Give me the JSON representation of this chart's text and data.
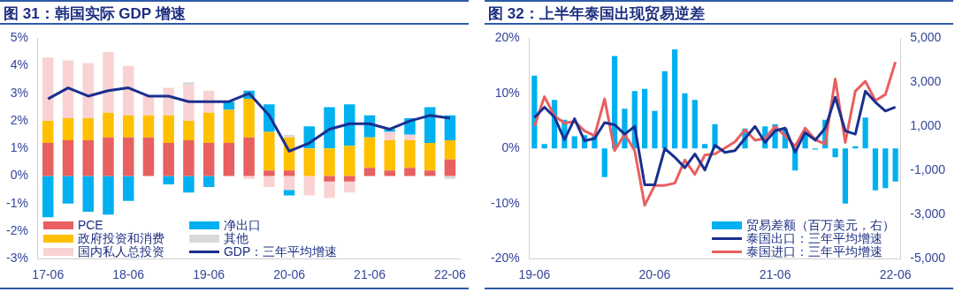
{
  "chart_data": [
    {
      "type": "bar",
      "title": "图 31：韩国实际 GDP 增速",
      "stacked": true,
      "legend": "bottom left",
      "grid": false,
      "categories": [
        "17-06",
        null,
        null,
        null,
        "18-06",
        null,
        null,
        null,
        "19-06",
        null,
        null,
        null,
        "20-06",
        null,
        null,
        null,
        "21-06",
        null,
        null,
        null,
        "22-06"
      ],
      "ylim": [
        -3,
        5
      ],
      "yticks": [
        {
          "value": -3,
          "label": "-3%"
        },
        {
          "value": -2,
          "label": "-2%"
        },
        {
          "value": -1,
          "label": "-1%"
        },
        {
          "value": 0,
          "label": "0%"
        },
        {
          "value": 1,
          "label": "1%"
        },
        {
          "value": 2,
          "label": "2%"
        },
        {
          "value": 3,
          "label": "3%"
        },
        {
          "value": 4,
          "label": "4%"
        },
        {
          "value": 5,
          "label": "5%"
        }
      ],
      "series": [
        {
          "name": "PCE",
          "color": "#e8605f",
          "values": [
            1.2,
            1.3,
            1.3,
            1.4,
            1.4,
            1.4,
            1.2,
            1.3,
            1.2,
            1.2,
            1.4,
            0.2,
            0.2,
            0.0,
            -0.2,
            -0.2,
            0.3,
            0.2,
            0.3,
            0.2,
            0.6
          ]
        },
        {
          "name": "政府投资和消费",
          "color": "#ffc000",
          "values": [
            0.8,
            0.8,
            0.8,
            0.9,
            0.8,
            0.8,
            1.0,
            0.7,
            1.1,
            1.2,
            1.4,
            1.4,
            1.2,
            1.0,
            1.0,
            1.1,
            1.1,
            1.1,
            1.0,
            1.0,
            0.7
          ]
        },
        {
          "name": "国内私人总投资",
          "color": "#f9d3d3",
          "values": [
            2.3,
            2.1,
            2.0,
            2.2,
            1.8,
            0.7,
            1.0,
            1.3,
            0.8,
            null,
            -0.1,
            -0.4,
            -0.5,
            -0.7,
            -0.6,
            -0.4,
            null,
            0.3,
            0.2,
            null,
            null
          ]
        },
        {
          "name": "净出口",
          "color": "#00b0f0",
          "values": [
            -1.5,
            -1.0,
            -1.3,
            -1.4,
            -0.9,
            null,
            -0.3,
            -0.6,
            -0.4,
            0.3,
            0.3,
            1.0,
            -0.2,
            0.8,
            1.5,
            1.5,
            0.8,
            0.1,
            0.6,
            1.3,
            0.9
          ]
        },
        {
          "name": "其他",
          "color": "#d9d9d9",
          "values": [
            null,
            null,
            null,
            null,
            null,
            null,
            null,
            0.1,
            null,
            null,
            null,
            null,
            0.1,
            null,
            null,
            null,
            null,
            null,
            null,
            null,
            -0.1
          ]
        },
        {
          "name": "GDP：三年平均增速",
          "type": "line",
          "color": "#1a2f8f",
          "values": [
            2.8,
            3.2,
            2.9,
            3.1,
            3.2,
            2.9,
            2.9,
            2.7,
            2.7,
            2.7,
            3.0,
            2.2,
            0.9,
            1.2,
            1.7,
            1.9,
            1.9,
            1.7,
            2.0,
            2.2,
            2.1
          ]
        }
      ]
    },
    {
      "type": "bar",
      "title": "图 32：上半年泰国出现贸易逆差",
      "legend": "bottom right",
      "grid": false,
      "categories": [
        "19-06",
        null,
        null,
        null,
        null,
        null,
        null,
        null,
        null,
        null,
        null,
        null,
        "20-06",
        null,
        null,
        null,
        null,
        null,
        null,
        null,
        null,
        null,
        null,
        null,
        "21-06",
        null,
        null,
        null,
        null,
        null,
        null,
        null,
        null,
        null,
        null,
        null,
        "22-06"
      ],
      "ylim": [
        -20,
        20
      ],
      "yticks": [
        {
          "value": -20,
          "label": "-20%"
        },
        {
          "value": -10,
          "label": "-10%"
        },
        {
          "value": 0,
          "label": "0%"
        },
        {
          "value": 10,
          "label": "10%"
        },
        {
          "value": 20,
          "label": "20%"
        }
      ],
      "y2lim": [
        -5000,
        5000
      ],
      "y2ticks": [
        {
          "value": -5000,
          "label": "-5,000"
        },
        {
          "value": -3000,
          "label": "-3,000"
        },
        {
          "value": -1000,
          "label": "-1,000"
        },
        {
          "value": 1000,
          "label": "1,000"
        },
        {
          "value": 3000,
          "label": "3,000"
        },
        {
          "value": 5000,
          "label": "5,000"
        }
      ],
      "series": [
        {
          "name": "贸易差额（百万美元，右）",
          "axis": "y2",
          "color": "#00b0f0",
          "values": [
            3300,
            200,
            2200,
            1300,
            550,
            600,
            600,
            -1300,
            4200,
            1800,
            2600,
            2700,
            1700,
            3500,
            4500,
            2500,
            2200,
            200,
            1100,
            null,
            null,
            900,
            null,
            1000,
            1100,
            900,
            -1000,
            650,
            -50,
            1300,
            -400,
            -2500,
            100,
            1400,
            -1900,
            -1800,
            -1500
          ]
        },
        {
          "name": "泰国出口：三年平均增速",
          "type": "line",
          "color": "#1a2f8f",
          "values": [
            5.6,
            7.5,
            5.7,
            1.6,
            5.4,
            1.4,
            1.8,
            4.7,
            4.3,
            2.6,
            4.0,
            -6.6,
            -6.6,
            0.0,
            -1.6,
            -3.5,
            -1.0,
            -3.9,
            0.6,
            -0.7,
            -0.4,
            1.8,
            4.0,
            1.1,
            3.2,
            3.7,
            -0.7,
            2.9,
            1.5,
            3.7,
            9.3,
            3.2,
            2.6,
            10.4,
            8.4,
            6.8,
            7.5
          ]
        },
        {
          "name": "泰国进口：三年平均增速",
          "type": "line",
          "color": "#e8605f",
          "values": [
            4.0,
            9.4,
            5.9,
            4.6,
            4.9,
            3.2,
            2.3,
            9.0,
            -0.4,
            2.6,
            -0.4,
            -10.3,
            -6.7,
            -6.7,
            -6.3,
            -2.1,
            -4.7,
            -1.2,
            -1.0,
            0.1,
            1.2,
            3.4,
            1.5,
            1.8,
            4.0,
            2.3,
            0.4,
            3.7,
            1.6,
            0.8,
            12.6,
            1.1,
            10.4,
            12.2,
            8.7,
            9.8,
            15.7
          ]
        }
      ]
    }
  ]
}
